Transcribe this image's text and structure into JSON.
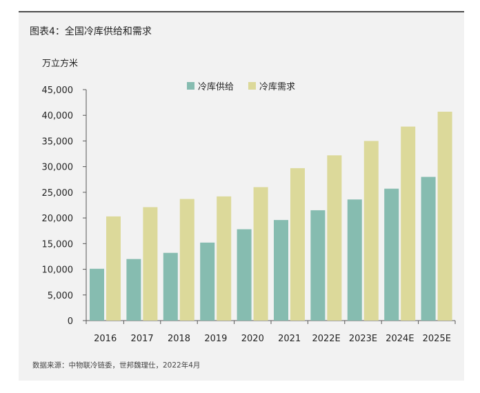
{
  "title": "图表4：全国冷库供给和需求",
  "source": "数据来源：中物联冷链委，世邦魏理仕，2022年4月",
  "chart_data": {
    "type": "bar",
    "unit_label": "万立方米",
    "categories": [
      "2016",
      "2017",
      "2018",
      "2019",
      "2020",
      "2021",
      "2022E",
      "2023E",
      "2024E",
      "2025E"
    ],
    "series": [
      {
        "name": "冷库供给",
        "color": "#86bcb0",
        "values": [
          10100,
          12000,
          13200,
          15200,
          17800,
          19600,
          21500,
          23600,
          25700,
          28000
        ]
      },
      {
        "name": "冷库需求",
        "color": "#dcd99a",
        "values": [
          20300,
          22100,
          23700,
          24200,
          26000,
          29700,
          32200,
          35000,
          37800,
          40700
        ]
      }
    ],
    "yticks": [
      "0",
      "5,000",
      "10,000",
      "15,000",
      "20,000",
      "25,000",
      "30,000",
      "35,000",
      "40,000",
      "45,000"
    ],
    "ylim": [
      0,
      45000
    ],
    "legend_position": "top-center",
    "grid": false
  }
}
